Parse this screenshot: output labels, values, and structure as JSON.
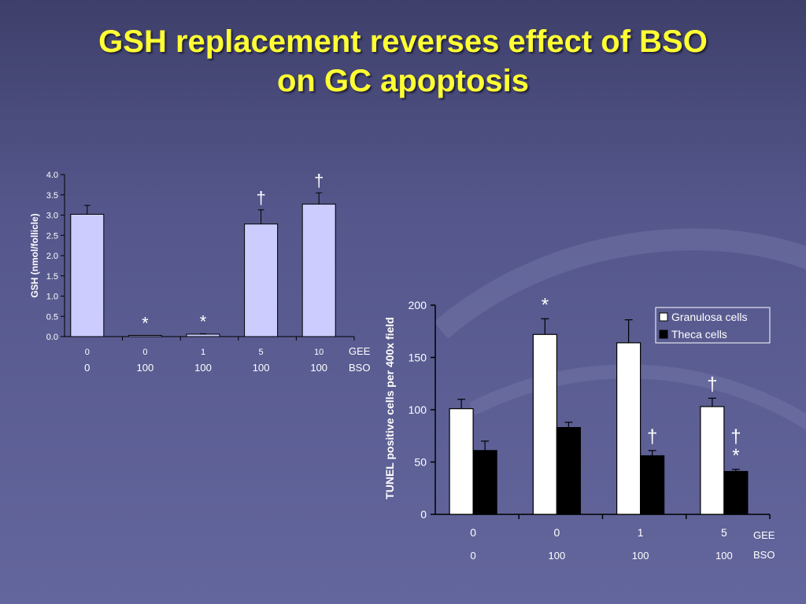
{
  "slide": {
    "title_line1": "GSH replacement reverses effect of BSO",
    "title_line2": "on GC apoptosis"
  },
  "colors": {
    "title": "#ffff33",
    "chart1_bar": "#ccccff",
    "granulosa": "#ffffff",
    "theca": "#000000",
    "axis": "#000000"
  },
  "chart_data": [
    {
      "type": "bar",
      "ylabel": "GSH (nmol/follicle)",
      "ylim": [
        0,
        4.0
      ],
      "yticks": [
        "0.0",
        "0.5",
        "1.0",
        "1.5",
        "2.0",
        "2.5",
        "3.0",
        "3.5",
        "4.0"
      ],
      "row1_name": "GEE",
      "row2_name": "BSO",
      "categories": [
        {
          "gee": "0",
          "bso": "0"
        },
        {
          "gee": "0",
          "bso": "100"
        },
        {
          "gee": "1",
          "bso": "100"
        },
        {
          "gee": "5",
          "bso": "100"
        },
        {
          "gee": "10",
          "bso": "100"
        }
      ],
      "values": [
        3.02,
        0.03,
        0.06,
        2.78,
        3.27
      ],
      "errors": [
        0.22,
        0.0,
        0.01,
        0.35,
        0.28
      ],
      "annotations": [
        "",
        "*",
        "*",
        "†",
        "†"
      ],
      "grid": false
    },
    {
      "type": "bar",
      "ylabel": "TUNEL positive cells per 400x field",
      "ylim": [
        0,
        200
      ],
      "yticks": [
        "0",
        "50",
        "100",
        "150",
        "200"
      ],
      "row1_name": "GEE",
      "row2_name": "BSO",
      "categories": [
        {
          "gee": "0",
          "bso": "0"
        },
        {
          "gee": "0",
          "bso": "100"
        },
        {
          "gee": "1",
          "bso": "100"
        },
        {
          "gee": "5",
          "bso": "100"
        }
      ],
      "series": [
        {
          "name": "Granulosa cells",
          "values": [
            101,
            172,
            164,
            103
          ],
          "errors": [
            9,
            15,
            22,
            8
          ],
          "annotations": [
            "",
            "*",
            "",
            "†"
          ]
        },
        {
          "name": "Theca cells",
          "values": [
            61,
            83,
            56,
            41
          ],
          "errors": [
            9,
            5,
            5,
            2
          ],
          "annotations": [
            "",
            "",
            "†",
            "†*"
          ]
        }
      ],
      "legend_position": "top-right",
      "grid": false
    }
  ]
}
